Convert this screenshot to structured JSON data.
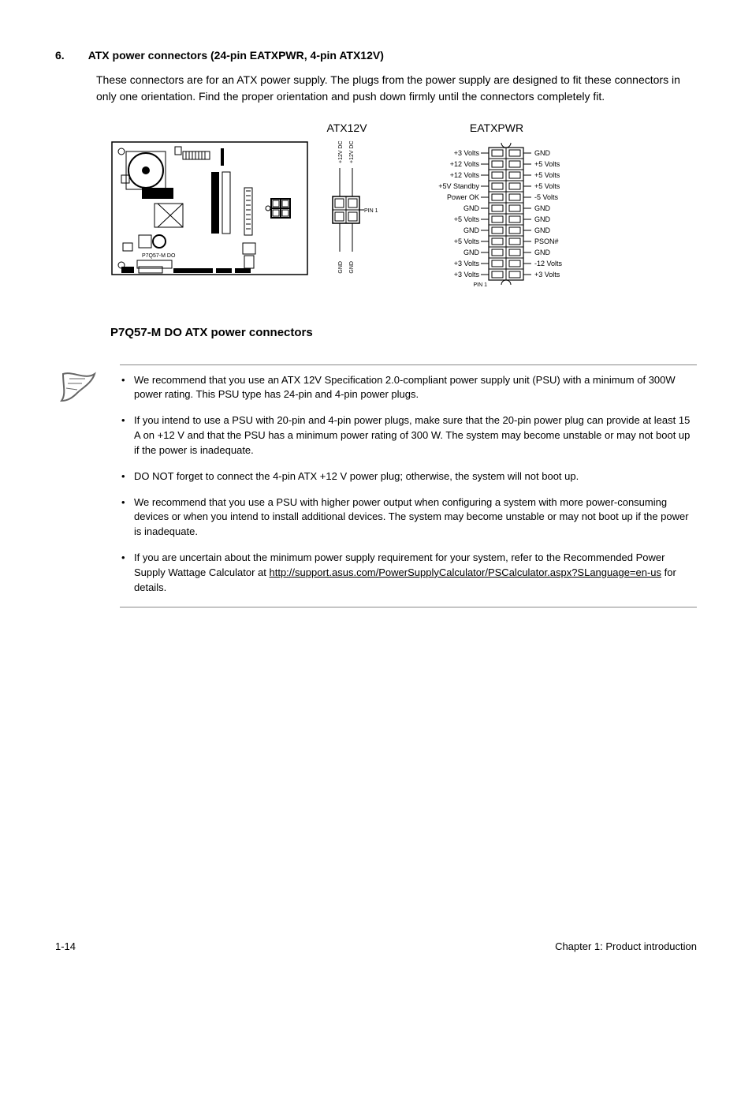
{
  "section": {
    "number": "6.",
    "title": "ATX power connectors (24-pin EATXPWR, 4-pin ATX12V)",
    "body": "These connectors are for an ATX power supply. The plugs from the power supply are designed to fit these connectors in only one orientation. Find the proper orientation and push down firmly until the connectors completely fit."
  },
  "diagram": {
    "label_atx12v": "ATX12V",
    "label_eatxpwr": "EATXPWR",
    "caption": "P7Q57-M DO ATX power connectors",
    "board_text": "P7Q57-M DO",
    "atx12v_labels_top": [
      "+12V DC",
      "+12V DC"
    ],
    "atx12v_labels_bot": [
      "GND",
      "GND"
    ],
    "pin1": "PIN 1",
    "eatx_left": [
      "+3 Volts",
      "+12 Volts",
      "+12 Volts",
      "+5V Standby",
      "Power OK",
      "GND",
      "+5 Volts",
      "GND",
      "+5 Volts",
      "GND",
      "+3 Volts",
      "+3 Volts"
    ],
    "eatx_right": [
      "GND",
      "+5 Volts",
      "+5 Volts",
      "+5 Volts",
      "-5 Volts",
      "GND",
      "GND",
      "GND",
      "PSON#",
      "GND",
      "-12 Volts",
      "+3 Volts"
    ]
  },
  "notes": [
    {
      "text_a": "We recommend that you use an ATX 12V Specification 2.0-compliant power supply unit (PSU) with a minimum of 300W power rating. This PSU type has 24-pin and 4-pin power plugs."
    },
    {
      "text_a": "If you intend to use a PSU with 20-pin and 4-pin power plugs, make sure that the 20-pin power plug can provide at least 15 A on +12 V and that the PSU has a minimum power rating of 300 W. The system may become unstable or may not boot up if the power is inadequate."
    },
    {
      "text_a": "DO NOT forget to connect the 4-pin ATX +12 V power plug; otherwise, the system will not boot up."
    },
    {
      "text_a": "We recommend that you use a PSU with higher power output when configuring a system with more power-consuming devices or when you intend to install additional devices. The system may become unstable or may not boot up if the power is inadequate."
    },
    {
      "text_a": "If you are uncertain about the minimum power supply requirement for your system, refer to the Recommended Power Supply Wattage Calculator at ",
      "link": "http://support.asus.com/PowerSupplyCalculator/PSCalculator.aspx?SLanguage=en-us",
      "text_b": " for details."
    }
  ],
  "footer": {
    "left": "1-14",
    "right": "Chapter 1: Product introduction"
  },
  "colors": {
    "text": "#000000",
    "rule": "#888888",
    "bg": "#ffffff"
  }
}
